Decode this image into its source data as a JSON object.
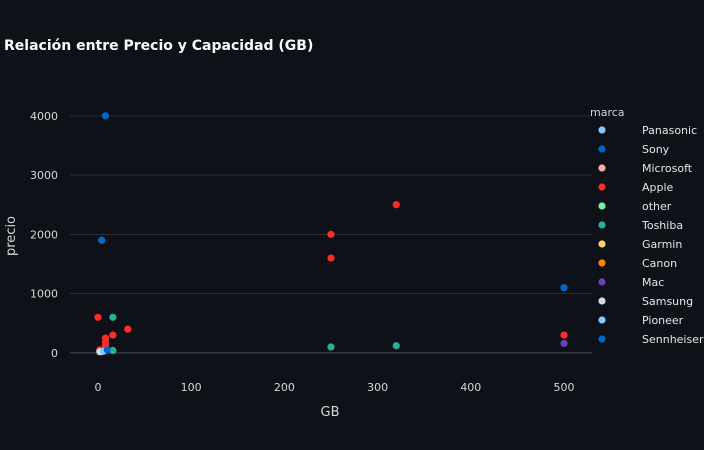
{
  "chart_data": {
    "type": "scatter",
    "title": "Relación entre Precio y Capacidad (GB)",
    "xlabel": "GB",
    "ylabel": "precio",
    "xlim": [
      -30,
      530
    ],
    "ylim": [
      -340,
      4470
    ],
    "xticks": [
      0,
      100,
      200,
      300,
      400,
      500
    ],
    "yticks": [
      0,
      1000,
      2000,
      3000,
      4000
    ],
    "grid": true,
    "legend_title": "marca",
    "legend_position": "right",
    "series": [
      {
        "name": "Panasonic",
        "color": "#83c9ff",
        "points": [
          [
            4,
            20
          ]
        ]
      },
      {
        "name": "Sony",
        "color": "#0068c9",
        "points": [
          [
            8,
            4000
          ],
          [
            4,
            1900
          ],
          [
            500,
            1100
          ],
          [
            8,
            40
          ]
        ]
      },
      {
        "name": "Microsoft",
        "color": "#ffabab",
        "points": []
      },
      {
        "name": "Apple",
        "color": "#ff2b2b",
        "points": [
          [
            320,
            2500
          ],
          [
            250,
            2000
          ],
          [
            250,
            1600
          ],
          [
            0,
            600
          ],
          [
            32,
            400
          ],
          [
            500,
            300
          ],
          [
            16,
            300
          ],
          [
            8,
            250
          ],
          [
            8,
            180
          ],
          [
            8,
            120
          ],
          [
            2,
            50
          ]
        ]
      },
      {
        "name": "other",
        "color": "#7defa1",
        "points": []
      },
      {
        "name": "Toshiba",
        "color": "#29b09d",
        "points": [
          [
            16,
            600
          ],
          [
            320,
            120
          ],
          [
            250,
            100
          ],
          [
            16,
            40
          ]
        ]
      },
      {
        "name": "Garmin",
        "color": "#ffd16a",
        "points": []
      },
      {
        "name": "Canon",
        "color": "#ff8700",
        "points": []
      },
      {
        "name": "Mac",
        "color": "#6d3fc0",
        "points": [
          [
            500,
            160
          ]
        ]
      },
      {
        "name": "Samsung",
        "color": "#d5dae5",
        "points": [
          [
            2,
            20
          ]
        ]
      },
      {
        "name": "Pioneer",
        "color": "#83c9ff",
        "points": [
          [
            6,
            30
          ]
        ]
      },
      {
        "name": "Sennheiser",
        "color": "#0068c9",
        "points": [
          [
            10,
            50
          ]
        ]
      }
    ]
  }
}
